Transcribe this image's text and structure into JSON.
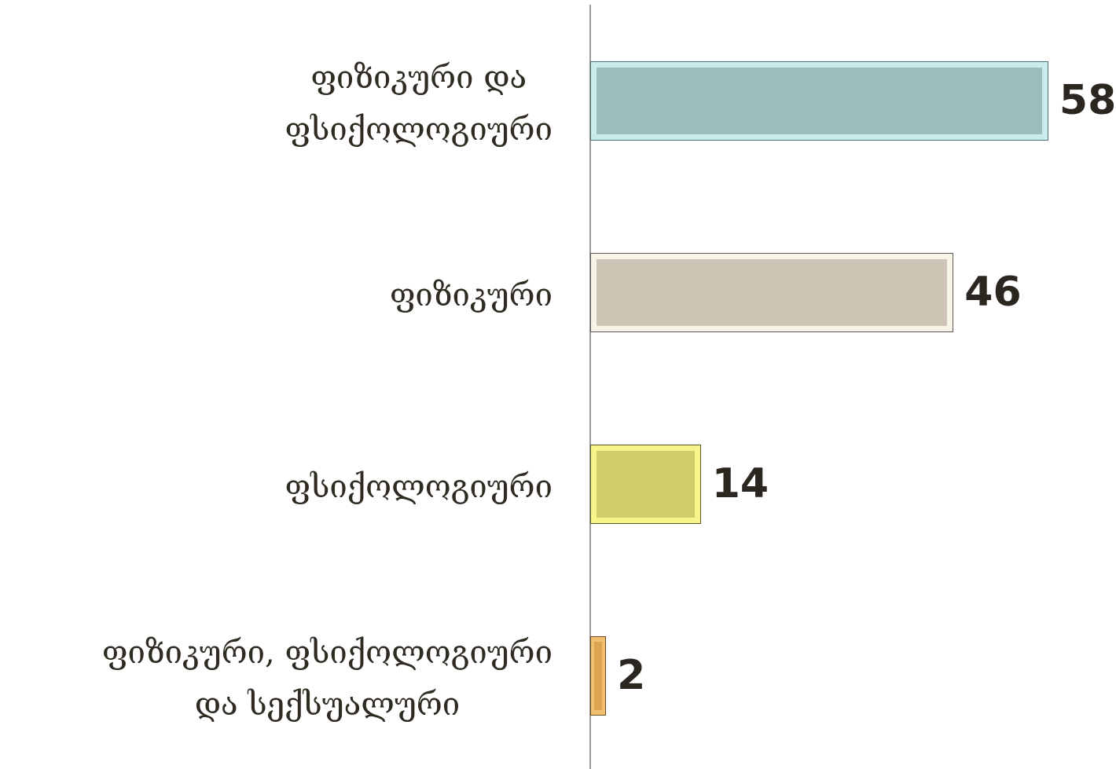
{
  "chart_data": {
    "type": "bar",
    "orientation": "horizontal",
    "categories": [
      "ფიზიკური და\nფსიქოლოგიური",
      "ფიზიკური",
      "ფსიქოლოგიური",
      "ფიზიკური, ფსიქოლოგიური\nდა სექსუალური"
    ],
    "values": [
      58,
      46,
      14,
      2
    ],
    "xlim": [
      0,
      60
    ],
    "data_labels": true,
    "grid": false,
    "legend": "none",
    "colors": [
      {
        "fill": "#9bbdbb",
        "frame": "#c9ecec",
        "edge": "#4f6e6e"
      },
      {
        "fill": "#cec4b5",
        "frame": "#f7f4e8",
        "edge": "#5e5a50"
      },
      {
        "fill": "#d3cc6d",
        "frame": "#f7f48a",
        "edge": "#5a5a2a"
      },
      {
        "fill": "#dca450",
        "frame": "#f0c070",
        "edge": "#6b4a1e"
      }
    ]
  }
}
